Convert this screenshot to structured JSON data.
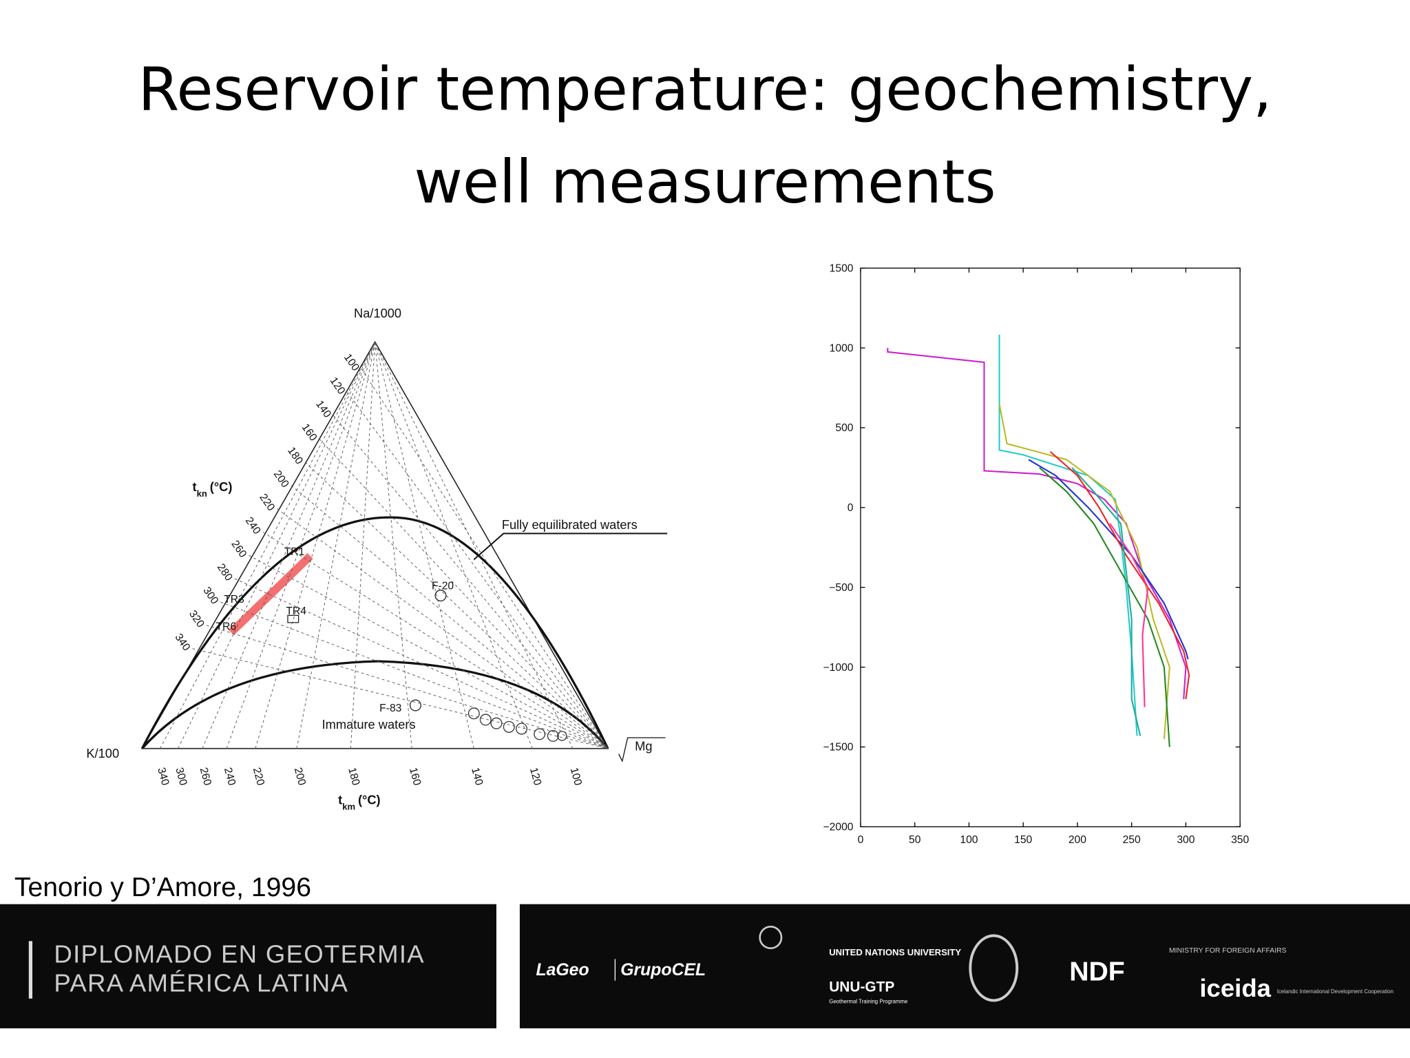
{
  "header": {
    "title_lines": [
      "Reservoir temperature: geochemistry,",
      "well measurements"
    ]
  },
  "ternary_diagram": {
    "apex_top": "Na/1000",
    "apex_left": "K/100",
    "apex_right": "Mg",
    "left_axis_title": "t",
    "left_axis_sub": "kn",
    "left_axis_unit": "(°C)",
    "bottom_axis_title": "t",
    "bottom_axis_sub": "km",
    "bottom_axis_unit": "(°C)",
    "left_ticks": [
      "100",
      "120",
      "140",
      "160",
      "180",
      "200",
      "220",
      "240",
      "260",
      "280",
      "300",
      "320",
      "340"
    ],
    "bottom_ticks": [
      "340",
      "300",
      "260",
      "240",
      "220",
      "200",
      "180",
      "160",
      "140",
      "120",
      "100"
    ],
    "curve_labels": [
      "Fully equilibrated waters",
      "Immature waters"
    ],
    "points": [
      "F-20",
      "F-83",
      "TR1",
      "TR3",
      "TR4",
      "TR6"
    ]
  },
  "chart_data": {
    "type": "line",
    "xlim": [
      0,
      350
    ],
    "xticks": [
      0,
      50,
      100,
      150,
      200,
      250,
      300,
      350
    ],
    "ylim": [
      -2000,
      1500
    ],
    "yticks": [
      {
        "value": -2000,
        "label": "−2000"
      },
      {
        "value": -1500,
        "label": "−1500"
      },
      {
        "value": -1000,
        "label": "−1000"
      },
      {
        "value": -500,
        "label": "−500"
      },
      0,
      500,
      1000,
      1500
    ],
    "series": [
      {
        "color": "#cc22cc",
        "x": [
          25,
          25,
          114,
          114,
          165,
          200,
          225,
          245,
          260,
          285,
          300,
          298
        ],
        "values": [
          1000,
          975,
          910,
          230,
          210,
          150,
          50,
          -100,
          -400,
          -700,
          -1000,
          -1200
        ]
      },
      {
        "color": "#22cccc",
        "x": [
          128,
          128,
          128,
          150,
          210,
          235,
          240,
          245,
          250,
          255
        ],
        "values": [
          1083,
          700,
          360,
          330,
          200,
          50,
          -200,
          -500,
          -900,
          -1430
        ]
      },
      {
        "color": "#bbbb22",
        "x": [
          128,
          135,
          190,
          230,
          255,
          270,
          285,
          280
        ],
        "values": [
          650,
          400,
          300,
          100,
          -250,
          -700,
          -1000,
          -1450
        ]
      },
      {
        "color": "#2233cc",
        "x": [
          155,
          180,
          210,
          250,
          280,
          300,
          302
        ],
        "values": [
          300,
          200,
          0,
          -300,
          -600,
          -900,
          -950
        ]
      },
      {
        "color": "#ee2222",
        "x": [
          175,
          200,
          220,
          245,
          275,
          298,
          303,
          300
        ],
        "values": [
          350,
          200,
          0,
          -300,
          -600,
          -900,
          -1050,
          -1200
        ]
      },
      {
        "color": "#228822",
        "x": [
          165,
          190,
          215,
          240,
          265,
          280,
          285
        ],
        "values": [
          250,
          100,
          -100,
          -400,
          -700,
          -1000,
          -1500
        ]
      },
      {
        "color": "#22aa99",
        "x": [
          195,
          215,
          240,
          245,
          250,
          250,
          258
        ],
        "values": [
          250,
          100,
          -100,
          -400,
          -700,
          -1200,
          -1430
        ]
      },
      {
        "color": "#ff3399",
        "x": [
          230,
          250,
          265,
          260,
          262
        ],
        "values": [
          -100,
          -300,
          -500,
          -800,
          -1250
        ]
      }
    ]
  },
  "citation": "Tenorio y D’Amore, 1996",
  "footer": {
    "program": [
      "DIPLOMADO EN GEOTERMIA",
      "PARA AMÉRICA LATINA"
    ],
    "logos": [
      "LaGeo",
      "GrupoCEL",
      "UNITED NATIONS UNIVERSITY",
      "UNU-GTP",
      "Geothermal Training Programme",
      "NDF",
      "MINISTRY FOR FOREIGN AFFAIRS",
      "iceida",
      "Icelandic International Development Cooperation"
    ]
  }
}
